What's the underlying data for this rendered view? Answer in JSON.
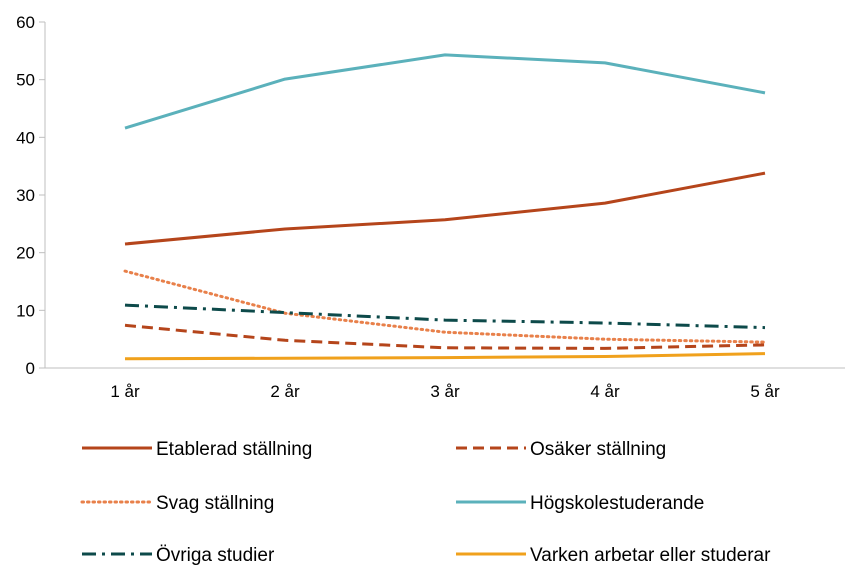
{
  "chart_data": {
    "type": "line",
    "categories": [
      "1 år",
      "2 år",
      "3 år",
      "4 år",
      "5 år"
    ],
    "ylim": [
      0,
      60
    ],
    "yticks": [
      0,
      10,
      20,
      30,
      40,
      50,
      60
    ],
    "grid": false,
    "legend_position": "bottom",
    "series": [
      {
        "name": "Etablerad ställning",
        "values": [
          21.5,
          24.1,
          25.7,
          28.6,
          33.8
        ],
        "color": "#b5451b",
        "dash": "solid"
      },
      {
        "name": "Osäker ställning",
        "values": [
          7.4,
          4.8,
          3.5,
          3.4,
          4.0
        ],
        "color": "#b5451b",
        "dash": "dashed"
      },
      {
        "name": "Svag ställning",
        "values": [
          16.8,
          9.5,
          6.2,
          5.0,
          4.5
        ],
        "color": "#e8804a",
        "dash": "dotted"
      },
      {
        "name": "Högskolestuderande",
        "values": [
          41.6,
          50.1,
          54.3,
          52.9,
          47.7
        ],
        "color": "#5bb1bb",
        "dash": "solid"
      },
      {
        "name": "Övriga studier",
        "values": [
          10.9,
          9.6,
          8.3,
          7.8,
          7.0
        ],
        "color": "#0d4a4a",
        "dash": "dashdot"
      },
      {
        "name": "Varken arbetar eller studerar",
        "values": [
          1.6,
          1.7,
          1.8,
          2.0,
          2.5
        ],
        "color": "#f0a11c",
        "dash": "solid"
      }
    ]
  }
}
